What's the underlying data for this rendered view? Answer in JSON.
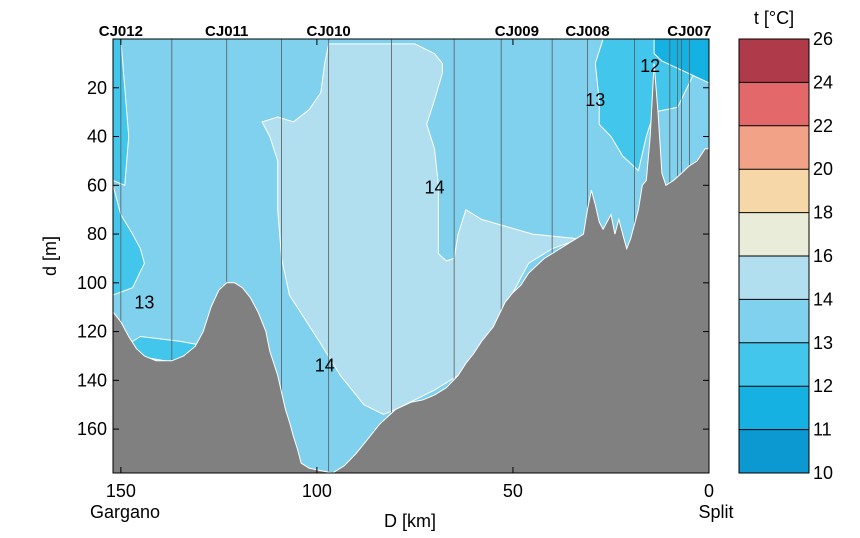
{
  "chart_data": {
    "type": "contour",
    "xlabel": "D [km]",
    "ylabel": "d [m]",
    "xlim": [
      152,
      0
    ],
    "ylim": [
      0,
      178
    ],
    "x_reversed": true,
    "y_reversed": true,
    "xticks": [
      150,
      100,
      50,
      0
    ],
    "yticks": [
      20,
      40,
      60,
      80,
      100,
      120,
      140,
      160
    ],
    "end_labels": {
      "left": "Gargano",
      "right": "Split"
    },
    "stations": [
      {
        "name": "CJ012",
        "x": 150
      },
      {
        "name": "CJ011",
        "x": 123
      },
      {
        "name": "CJ010",
        "x": 97
      },
      {
        "name": "CJ009",
        "x": 49
      },
      {
        "name": "CJ008",
        "x": 31
      },
      {
        "name": "CJ007",
        "x": 5
      }
    ],
    "profile_lines_x": [
      150,
      137,
      123,
      109,
      97,
      81,
      65,
      53,
      40,
      31,
      19,
      10,
      8,
      7,
      5
    ],
    "contour_labels": [
      {
        "text": "13",
        "x": 144,
        "y": 108
      },
      {
        "text": "14",
        "x": 98,
        "y": 134
      },
      {
        "text": "14",
        "x": 70,
        "y": 61
      },
      {
        "text": "13",
        "x": 29,
        "y": 25
      },
      {
        "text": "12",
        "x": 15,
        "y": 11
      }
    ],
    "colorbar": {
      "title": "t [°C]",
      "levels": [
        10,
        11,
        12,
        13,
        14,
        16,
        18,
        20,
        22,
        24,
        26
      ],
      "colors": [
        "#0c98d0",
        "#16b1e3",
        "#43c6ec",
        "#7fd1ee",
        "#b2dff0",
        "#e8ecd8",
        "#f6d7a7",
        "#f2a287",
        "#e3686a",
        "#af3a4a"
      ]
    },
    "regions": [
      {
        "name": "water-13-14",
        "color": "#7fd1ee",
        "polygon": [
          [
            152,
            0
          ],
          [
            0,
            0
          ],
          [
            0,
            55
          ],
          [
            152,
            55
          ],
          [
            152,
            178
          ],
          [
            0,
            178
          ]
        ]
      },
      {
        "name": "water-14-16-core",
        "color": "#b2dff0",
        "polygon": [
          [
            106,
            34
          ],
          [
            110,
            32
          ],
          [
            114,
            34
          ],
          [
            112,
            40
          ],
          [
            110,
            50
          ],
          [
            110,
            70
          ],
          [
            109,
            90
          ],
          [
            107,
            105
          ],
          [
            103,
            115
          ],
          [
            99,
            125
          ],
          [
            94,
            138
          ],
          [
            88,
            150
          ],
          [
            83,
            154
          ],
          [
            80,
            152
          ],
          [
            70,
            144
          ],
          [
            62,
            136
          ],
          [
            55,
            120
          ],
          [
            50,
            104
          ],
          [
            46,
            92
          ],
          [
            40,
            86
          ],
          [
            33,
            82
          ],
          [
            45,
            80
          ],
          [
            58,
            74
          ],
          [
            62,
            70
          ],
          [
            64,
            80
          ],
          [
            65,
            90
          ],
          [
            67,
            91
          ],
          [
            69,
            88
          ],
          [
            69,
            80
          ],
          [
            69,
            60
          ],
          [
            70,
            45
          ],
          [
            72,
            35
          ],
          [
            70,
            25
          ],
          [
            68,
            14
          ],
          [
            68,
            10
          ],
          [
            70,
            6
          ],
          [
            75,
            2
          ],
          [
            88,
            2
          ],
          [
            97,
            2
          ],
          [
            98,
            10
          ],
          [
            99,
            22
          ],
          [
            102,
            29
          ]
        ]
      },
      {
        "name": "water-12-13-gargano",
        "color": "#43c6ec",
        "polygon": [
          [
            152,
            60
          ],
          [
            150,
            72
          ],
          [
            147,
            80
          ],
          [
            145,
            86
          ],
          [
            144,
            92
          ],
          [
            147,
            102
          ],
          [
            152,
            105
          ]
        ]
      },
      {
        "name": "water-12-13-gargano-bottom",
        "color": "#43c6ec",
        "polygon": [
          [
            145,
            122
          ],
          [
            135,
            124
          ],
          [
            128,
            126
          ],
          [
            127,
            131
          ],
          [
            135,
            133
          ],
          [
            146,
            130
          ],
          [
            149,
            126
          ]
        ]
      },
      {
        "name": "water-12-13-split",
        "color": "#43c6ec",
        "polygon": [
          [
            20,
            0
          ],
          [
            27,
            0
          ],
          [
            29,
            10
          ],
          [
            28,
            25
          ],
          [
            28,
            35
          ],
          [
            25,
            40
          ],
          [
            22,
            48
          ],
          [
            18,
            54
          ],
          [
            16,
            40
          ],
          [
            14,
            30
          ],
          [
            8,
            28
          ],
          [
            5,
            18
          ],
          [
            2,
            8
          ],
          [
            0,
            0
          ]
        ]
      },
      {
        "name": "water-11-12-split",
        "color": "#16b1e3",
        "polygon": [
          [
            14,
            0
          ],
          [
            0,
            0
          ],
          [
            0,
            18
          ],
          [
            4,
            15
          ],
          [
            8,
            12
          ],
          [
            12,
            9
          ],
          [
            14,
            6
          ]
        ]
      },
      {
        "name": "water-12-13-strip",
        "color": "#43c6ec",
        "polygon": [
          [
            152,
            0
          ],
          [
            150,
            0
          ],
          [
            149,
            20
          ],
          [
            148,
            40
          ],
          [
            149,
            60
          ],
          [
            152,
            58
          ]
        ]
      }
    ],
    "bathymetry": [
      [
        152,
        112
      ],
      [
        150,
        116
      ],
      [
        148,
        122
      ],
      [
        146,
        127
      ],
      [
        144,
        130
      ],
      [
        141,
        132
      ],
      [
        137,
        132
      ],
      [
        134,
        130
      ],
      [
        131,
        126
      ],
      [
        129,
        120
      ],
      [
        127,
        110
      ],
      [
        125,
        103
      ],
      [
        123,
        100
      ],
      [
        121,
        100
      ],
      [
        119,
        102
      ],
      [
        117,
        106
      ],
      [
        115,
        112
      ],
      [
        113,
        120
      ],
      [
        112,
        128
      ],
      [
        111,
        133
      ],
      [
        110,
        138
      ],
      [
        109,
        145
      ],
      [
        108,
        152
      ],
      [
        107,
        157
      ],
      [
        106,
        163
      ],
      [
        105,
        168
      ],
      [
        104,
        174
      ],
      [
        102,
        176
      ],
      [
        99,
        177
      ],
      [
        96,
        178
      ],
      [
        93,
        175
      ],
      [
        90,
        170
      ],
      [
        87,
        164
      ],
      [
        84,
        158
      ],
      [
        80,
        152
      ],
      [
        76,
        149
      ],
      [
        73,
        148
      ],
      [
        70,
        146
      ],
      [
        67,
        143
      ],
      [
        64,
        138
      ],
      [
        62,
        133
      ],
      [
        60,
        129
      ],
      [
        58,
        124
      ],
      [
        55,
        118
      ],
      [
        52,
        108
      ],
      [
        50,
        104
      ],
      [
        48,
        101
      ],
      [
        46,
        96
      ],
      [
        44,
        93
      ],
      [
        42,
        90
      ],
      [
        40,
        88
      ],
      [
        38,
        86
      ],
      [
        36,
        84
      ],
      [
        34,
        82
      ],
      [
        32,
        80
      ],
      [
        31,
        70
      ],
      [
        30,
        62
      ],
      [
        29,
        68
      ],
      [
        28,
        75
      ],
      [
        27,
        78
      ],
      [
        25,
        72
      ],
      [
        24,
        80
      ],
      [
        23,
        74
      ],
      [
        22,
        80
      ],
      [
        21,
        86
      ],
      [
        20,
        82
      ],
      [
        19,
        76
      ],
      [
        18,
        70
      ],
      [
        17,
        60
      ],
      [
        16,
        58
      ],
      [
        15,
        40
      ],
      [
        14,
        10
      ],
      [
        13,
        30
      ],
      [
        12,
        55
      ],
      [
        11,
        60
      ],
      [
        9,
        58
      ],
      [
        7,
        55
      ],
      [
        5,
        52
      ],
      [
        3,
        50
      ],
      [
        1,
        45
      ],
      [
        0,
        45
      ],
      [
        0,
        178
      ]
    ]
  }
}
